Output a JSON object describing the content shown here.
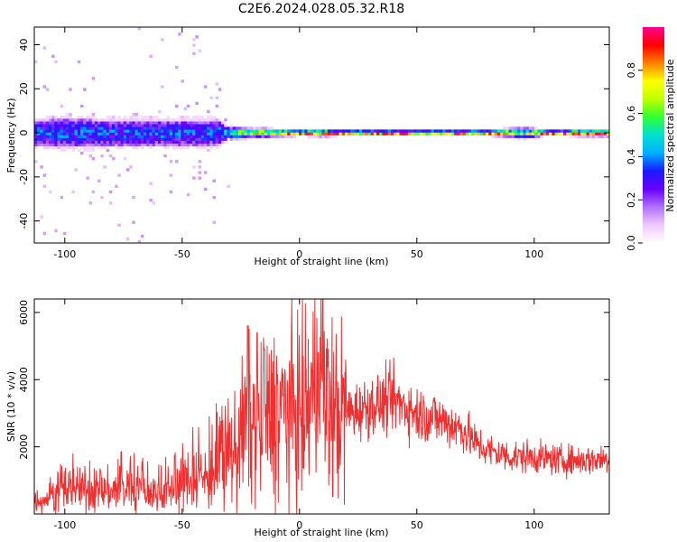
{
  "title": "C2E6.2024.028.05.32.R18",
  "colors": {
    "series_line": "#f03030",
    "frame": "#000000",
    "colormap": [
      "#ffffff",
      "#f0c8ff",
      "#b070ff",
      "#6a00ff",
      "#1a1aff",
      "#00b0ff",
      "#00e0d0",
      "#30ff30",
      "#c0ff00",
      "#ffff00",
      "#ff8000",
      "#ff0000",
      "#ff0090"
    ]
  },
  "chart_data": [
    {
      "type": "heatmap",
      "xlabel": "Height of straight line (km)",
      "ylabel": "Frequency (Hz)",
      "xlim": [
        -113,
        132
      ],
      "ylim": [
        -50,
        48
      ],
      "x_ticks": [
        -100,
        -50,
        0,
        50,
        100
      ],
      "y_ticks": [
        40,
        20,
        0,
        -20,
        -40
      ],
      "colorbar": {
        "label": "Normalized spectral amplitude",
        "range": [
          0.0,
          1.0
        ],
        "ticks": [
          0.0,
          0.2,
          0.4,
          0.6,
          0.8
        ]
      },
      "spread_profile": {
        "x": [
          -113,
          -100,
          -80,
          -60,
          -45,
          -35,
          -30,
          -25,
          -20,
          -15,
          -10,
          -5,
          0,
          10,
          20,
          50,
          80,
          90,
          95,
          100,
          105,
          110,
          120,
          132
        ],
        "spread_hz": [
          8,
          9,
          8,
          8,
          8,
          8,
          3,
          2.5,
          2,
          2,
          1.5,
          1.5,
          1.2,
          1.5,
          1,
          1,
          1,
          2,
          2.5,
          2,
          1,
          1,
          1.5,
          1.5
        ],
        "max_amplitude": [
          0.35,
          0.35,
          0.35,
          0.35,
          0.35,
          0.35,
          0.5,
          0.6,
          0.65,
          0.75,
          0.85,
          0.9,
          0.95,
          0.9,
          0.95,
          0.95,
          0.95,
          0.7,
          0.6,
          0.7,
          0.95,
          0.95,
          0.9,
          0.9
        ]
      }
    },
    {
      "type": "line",
      "xlabel": "Height of straight line (km)",
      "ylabel": "SNR (10 * v/v)",
      "xlim": [
        -113,
        132
      ],
      "ylim": [
        0,
        6400
      ],
      "x_ticks": [
        -100,
        -50,
        0,
        50,
        100
      ],
      "y_ticks": [
        6000,
        4000,
        2000
      ],
      "series": [
        {
          "x": [
            -113,
            -105,
            -100,
            -95,
            -90,
            -80,
            -70,
            -60,
            -50,
            -45,
            -40,
            -35,
            -30,
            -25,
            -22,
            -20,
            -17,
            -15,
            -12,
            -10,
            -5,
            0,
            5,
            8,
            9,
            10,
            11,
            12,
            15,
            20,
            30,
            40,
            50,
            60,
            70,
            75,
            80,
            90,
            100,
            110,
            120,
            132
          ],
          "values": [
            400,
            500,
            700,
            800,
            700,
            700,
            750,
            600,
            900,
            1200,
            1100,
            1300,
            1500,
            2400,
            2600,
            2600,
            2500,
            2700,
            2900,
            3000,
            3100,
            3000,
            3300,
            4000,
            4200,
            3000,
            3500,
            3200,
            3000,
            3000,
            3200,
            3400,
            3000,
            2800,
            2500,
            2100,
            1900,
            1700,
            1700,
            1600,
            1600,
            1650
          ],
          "spikes": [
            {
              "x": -22,
              "value": 5600
            },
            {
              "x": -18,
              "value": 5400
            },
            {
              "x": -15,
              "value": 4900
            },
            {
              "x": 5,
              "value": 4500
            },
            {
              "x": 8,
              "value": 4800
            },
            {
              "x": 10,
              "value": 6400
            }
          ]
        }
      ]
    }
  ]
}
